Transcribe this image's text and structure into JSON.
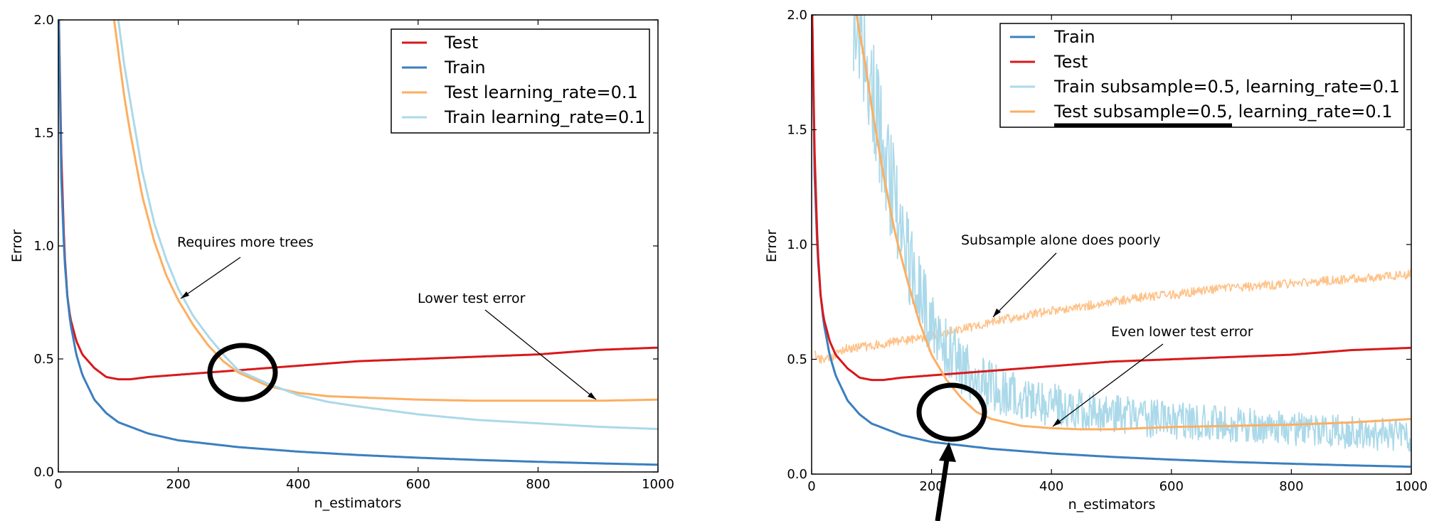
{
  "colors": {
    "test": "#d7191c",
    "train": "#3a7fbf",
    "test_lr": "#fdae61",
    "train_lr": "#abd9e9"
  },
  "chart_data": [
    {
      "type": "line",
      "xlabel": "n_estimators",
      "ylabel": "Error",
      "xlim": [
        0,
        1000
      ],
      "ylim": [
        0,
        2.0
      ],
      "xticks": [
        "0",
        "200",
        "400",
        "600",
        "800",
        "1000"
      ],
      "yticks": [
        "0.0",
        "0.5",
        "1.0",
        "1.5",
        "2.0"
      ],
      "grid": false,
      "legend_placement": "top-right",
      "series": [
        {
          "name": "Test",
          "color": "#d7191c",
          "x": [
            1,
            5,
            10,
            15,
            20,
            30,
            40,
            60,
            80,
            100,
            120,
            150,
            200,
            250,
            300,
            350,
            400,
            500,
            600,
            700,
            800,
            900,
            1000
          ],
          "y": [
            2.0,
            1.4,
            0.98,
            0.78,
            0.68,
            0.58,
            0.52,
            0.46,
            0.42,
            0.41,
            0.41,
            0.42,
            0.43,
            0.44,
            0.45,
            0.46,
            0.47,
            0.49,
            0.5,
            0.51,
            0.52,
            0.54,
            0.55
          ]
        },
        {
          "name": "Train",
          "color": "#3a7fbf",
          "x": [
            1,
            5,
            10,
            15,
            20,
            30,
            40,
            60,
            80,
            100,
            150,
            200,
            300,
            400,
            500,
            600,
            700,
            800,
            900,
            1000
          ],
          "y": [
            2.0,
            1.3,
            0.95,
            0.78,
            0.66,
            0.52,
            0.43,
            0.32,
            0.26,
            0.22,
            0.17,
            0.14,
            0.11,
            0.09,
            0.075,
            0.063,
            0.053,
            0.045,
            0.038,
            0.032
          ]
        },
        {
          "name": "Test learning_rate=0.1",
          "color": "#fdae61",
          "x": [
            93,
            100,
            110,
            120,
            140,
            160,
            180,
            200,
            225,
            250,
            275,
            300,
            350,
            400,
            450,
            500,
            600,
            700,
            800,
            900,
            1000
          ],
          "y": [
            2.0,
            1.86,
            1.66,
            1.5,
            1.22,
            1.02,
            0.87,
            0.76,
            0.65,
            0.56,
            0.49,
            0.44,
            0.38,
            0.35,
            0.335,
            0.33,
            0.32,
            0.315,
            0.315,
            0.315,
            0.32
          ]
        },
        {
          "name": "Train learning_rate=0.1",
          "color": "#abd9e9",
          "x": [
            100,
            110,
            120,
            140,
            160,
            180,
            200,
            225,
            250,
            275,
            300,
            350,
            400,
            450,
            500,
            600,
            700,
            800,
            900,
            1000
          ],
          "y": [
            2.0,
            1.8,
            1.64,
            1.33,
            1.1,
            0.94,
            0.81,
            0.69,
            0.6,
            0.52,
            0.45,
            0.39,
            0.34,
            0.31,
            0.29,
            0.255,
            0.23,
            0.215,
            0.2,
            0.19
          ]
        }
      ],
      "annotations": [
        {
          "text": "Requires more trees",
          "point": [
            205,
            0.77
          ]
        },
        {
          "text": "Lower test error",
          "point": [
            900,
            0.32
          ]
        }
      ]
    },
    {
      "type": "line",
      "xlabel": "n_estimators",
      "ylabel": "Error",
      "xlim": [
        0,
        1000
      ],
      "ylim": [
        0,
        2.0
      ],
      "xticks": [
        "0",
        "200",
        "400",
        "600",
        "800",
        "1000"
      ],
      "yticks": [
        "0.0",
        "0.5",
        "1.0",
        "1.5",
        "2.0"
      ],
      "grid": false,
      "legend_placement": "top-right",
      "series": [
        {
          "name": "Train",
          "color": "#3a7fbf",
          "x": [
            1,
            5,
            10,
            15,
            20,
            30,
            40,
            60,
            80,
            100,
            150,
            200,
            300,
            400,
            500,
            600,
            700,
            800,
            900,
            1000
          ],
          "y": [
            2.0,
            1.3,
            0.95,
            0.78,
            0.66,
            0.52,
            0.43,
            0.32,
            0.26,
            0.22,
            0.17,
            0.14,
            0.11,
            0.09,
            0.075,
            0.063,
            0.053,
            0.045,
            0.038,
            0.032
          ]
        },
        {
          "name": "Test",
          "color": "#d7191c",
          "x": [
            1,
            5,
            10,
            15,
            20,
            30,
            40,
            60,
            80,
            100,
            120,
            150,
            200,
            250,
            300,
            350,
            400,
            500,
            600,
            700,
            800,
            900,
            1000
          ],
          "y": [
            2.0,
            1.4,
            0.98,
            0.78,
            0.68,
            0.58,
            0.52,
            0.46,
            0.42,
            0.41,
            0.41,
            0.42,
            0.43,
            0.44,
            0.45,
            0.46,
            0.47,
            0.49,
            0.5,
            0.51,
            0.52,
            0.54,
            0.55
          ]
        },
        {
          "name": "Train subsample=0.5, learning_rate=0.1",
          "color": "#abd9e9",
          "noisy": true,
          "x": [
            70,
            90,
            110,
            130,
            150,
            175,
            200,
            225,
            250,
            275,
            300,
            350,
            400,
            450,
            500,
            550,
            600,
            650,
            700,
            750,
            800,
            850,
            900,
            950,
            1000
          ],
          "y": [
            2.0,
            1.85,
            1.55,
            1.3,
            1.05,
            0.82,
            0.66,
            0.55,
            0.47,
            0.42,
            0.38,
            0.33,
            0.3,
            0.28,
            0.26,
            0.245,
            0.235,
            0.225,
            0.215,
            0.205,
            0.195,
            0.19,
            0.18,
            0.175,
            0.165
          ]
        },
        {
          "name": "Test subsample=0.5, learning_rate=0.1",
          "color": "#fdae61",
          "x": [
            75,
            80,
            90,
            100,
            120,
            140,
            160,
            180,
            200,
            225,
            250,
            275,
            300,
            350,
            400,
            450,
            500,
            550,
            600,
            700,
            800,
            900,
            1000
          ],
          "y": [
            2.0,
            1.92,
            1.78,
            1.6,
            1.3,
            1.04,
            0.84,
            0.66,
            0.52,
            0.41,
            0.33,
            0.27,
            0.24,
            0.21,
            0.2,
            0.195,
            0.195,
            0.2,
            0.205,
            0.21,
            0.215,
            0.225,
            0.24
          ]
        },
        {
          "name": "",
          "color": "#fdae61",
          "faint": true,
          "noisy": true,
          "x": [
            5,
            10,
            20,
            40,
            60,
            80,
            100,
            150,
            200,
            250,
            300,
            350,
            400,
            450,
            500,
            550,
            600,
            650,
            700,
            750,
            800,
            850,
            900,
            950,
            1000
          ],
          "y": [
            0.55,
            0.5,
            0.5,
            0.52,
            0.55,
            0.55,
            0.56,
            0.58,
            0.6,
            0.63,
            0.66,
            0.69,
            0.71,
            0.73,
            0.75,
            0.77,
            0.78,
            0.8,
            0.81,
            0.82,
            0.83,
            0.84,
            0.85,
            0.86,
            0.87
          ]
        }
      ],
      "annotations": [
        {
          "text": "Subsample alone does poorly",
          "point": [
            300,
            0.68
          ]
        },
        {
          "text": "Even lower test error",
          "point": [
            400,
            0.2
          ]
        }
      ]
    }
  ]
}
